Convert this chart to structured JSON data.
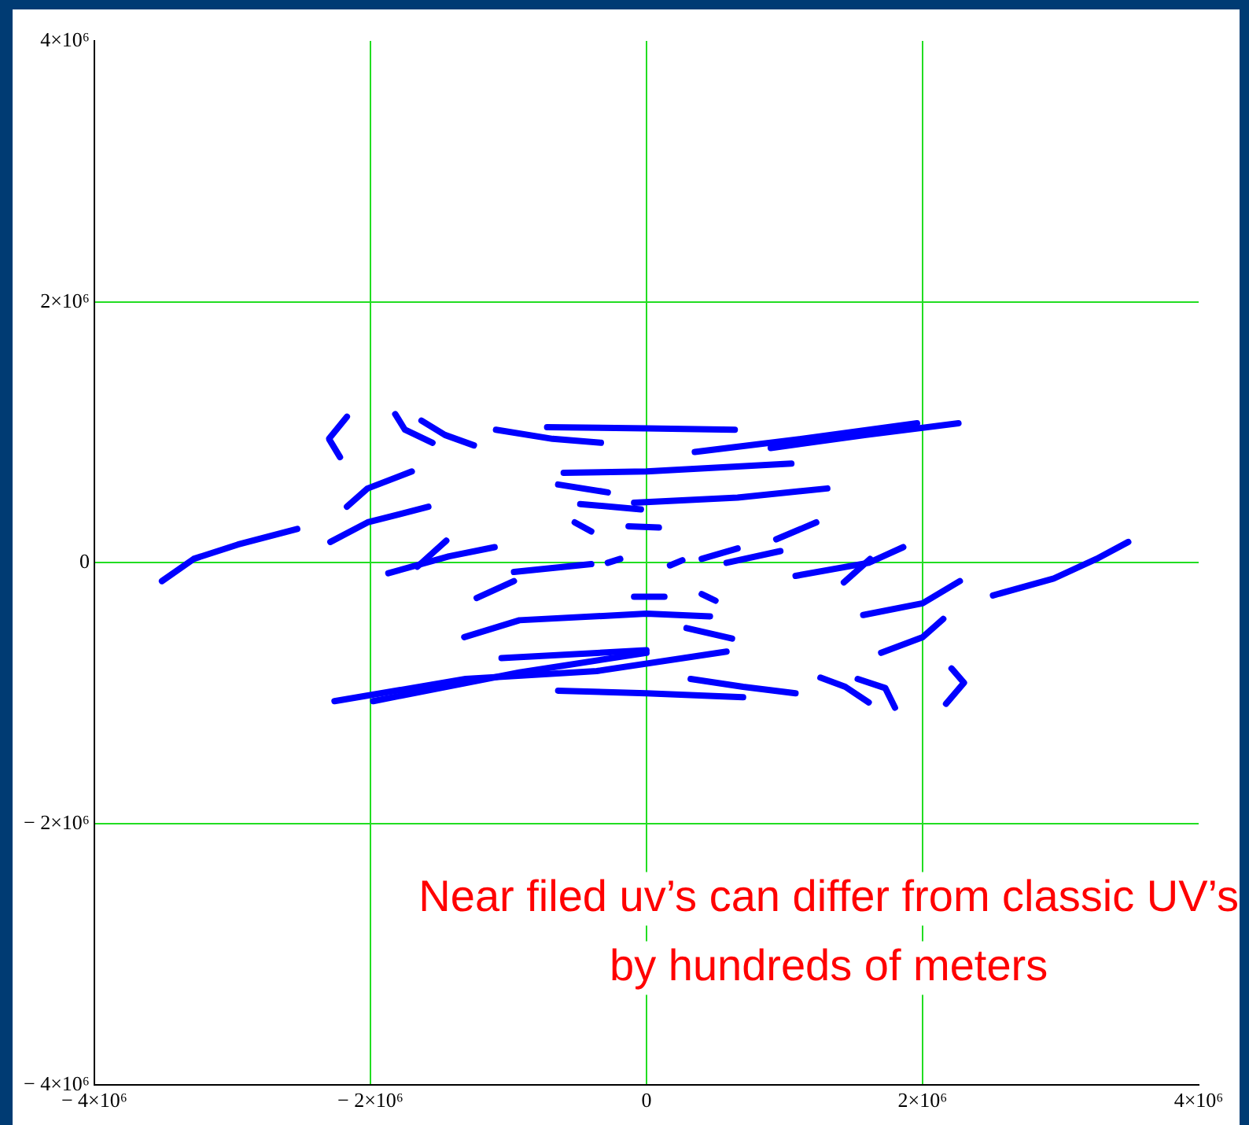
{
  "chart_data": {
    "type": "line",
    "xlim": [
      -4000000,
      4000000
    ],
    "ylim": [
      -4000000,
      4000000
    ],
    "xticks": [
      {
        "value": -4000000,
        "label": "− 4×10⁶"
      },
      {
        "value": -2000000,
        "label": "− 2×10⁶"
      },
      0,
      {
        "value": 2000000,
        "label": "2×10⁶"
      },
      {
        "value": 4000000,
        "label": "4×10⁶"
      }
    ],
    "yticks": [
      {
        "value": -4000000,
        "label": "− 4×10⁶"
      },
      {
        "value": -2000000,
        "label": "− 2×10⁶"
      },
      0,
      {
        "value": 2000000,
        "label": "2×10⁶"
      },
      {
        "value": 4000000,
        "label": "4×10⁶"
      }
    ],
    "grid": true,
    "legend": false,
    "marker": "none",
    "annotations": [
      "Near filed uv’s can differ from classic UV’s by hundreds of meters"
    ],
    "series": [
      {
        "color": "#0000ff",
        "x": [
          -3510000,
          -3280000,
          -2960000,
          -2530000
        ],
        "values": [
          -140000,
          30000,
          140000,
          260000
        ]
      },
      {
        "color": "#0000ff",
        "x": [
          2510000,
          2950000,
          3260000,
          3490000
        ],
        "values": [
          -250000,
          -120000,
          30000,
          160000
        ]
      },
      {
        "color": "#0000ff",
        "x": [
          -2290000,
          -2020000,
          -1580000
        ],
        "values": [
          160000,
          310000,
          430000
        ]
      },
      {
        "color": "#0000ff",
        "x": [
          -2170000,
          -2020000,
          -1700000
        ],
        "values": [
          430000,
          570000,
          700000
        ]
      },
      {
        "color": "#0000ff",
        "x": [
          -2170000,
          -2300000,
          -2220000
        ],
        "values": [
          1120000,
          950000,
          810000
        ]
      },
      {
        "color": "#0000ff",
        "x": [
          -1820000,
          -1750000,
          -1550000
        ],
        "values": [
          1140000,
          1020000,
          920000
        ]
      },
      {
        "color": "#0000ff",
        "x": [
          -1630000,
          -1460000,
          -1250000
        ],
        "values": [
          1090000,
          980000,
          900000
        ]
      },
      {
        "color": "#0000ff",
        "x": [
          -1090000,
          -680000,
          -330000
        ],
        "values": [
          1020000,
          950000,
          920000
        ]
      },
      {
        "color": "#0000ff",
        "x": [
          -720000,
          0,
          640000
        ],
        "values": [
          1040000,
          1030000,
          1020000
        ]
      },
      {
        "color": "#0000ff",
        "x": [
          350000,
          1050000,
          1960000
        ],
        "values": [
          850000,
          940000,
          1070000
        ]
      },
      {
        "color": "#0000ff",
        "x": [
          900000,
          1590000,
          2260000
        ],
        "values": [
          880000,
          980000,
          1070000
        ]
      },
      {
        "color": "#0000ff",
        "x": [
          -600000,
          0,
          1050000
        ],
        "values": [
          690000,
          700000,
          760000
        ]
      },
      {
        "color": "#0000ff",
        "x": [
          -640000,
          -280000
        ],
        "values": [
          600000,
          540000
        ]
      },
      {
        "color": "#0000ff",
        "x": [
          -90000,
          660000,
          1310000
        ],
        "values": [
          460000,
          500000,
          570000
        ]
      },
      {
        "color": "#0000ff",
        "x": [
          -480000,
          -40000
        ],
        "values": [
          450000,
          410000
        ]
      },
      {
        "color": "#0000ff",
        "x": [
          -130000,
          90000
        ],
        "values": [
          280000,
          270000
        ]
      },
      {
        "color": "#0000ff",
        "x": [
          940000,
          1230000
        ],
        "values": [
          180000,
          310000
        ]
      },
      {
        "color": "#0000ff",
        "x": [
          400000,
          660000
        ],
        "values": [
          30000,
          110000
        ]
      },
      {
        "color": "#0000ff",
        "x": [
          580000,
          970000
        ],
        "values": [
          0,
          90000
        ]
      },
      {
        "color": "#0000ff",
        "x": [
          1080000,
          1610000,
          1860000
        ],
        "values": [
          -100000,
          0,
          120000
        ]
      },
      {
        "color": "#0000ff",
        "x": [
          1430000,
          1620000
        ],
        "values": [
          -150000,
          30000
        ]
      },
      {
        "color": "#0000ff",
        "x": [
          1570000,
          2000000,
          2270000
        ],
        "values": [
          -400000,
          -310000,
          -140000
        ]
      },
      {
        "color": "#0000ff",
        "x": [
          1700000,
          2000000,
          2150000
        ],
        "values": [
          -690000,
          -570000,
          -430000
        ]
      },
      {
        "color": "#0000ff",
        "x": [
          1260000,
          1440000,
          1610000
        ],
        "values": [
          -880000,
          -950000,
          -1070000
        ]
      },
      {
        "color": "#0000ff",
        "x": [
          1530000,
          1730000,
          1800000
        ],
        "values": [
          -890000,
          -960000,
          -1110000
        ]
      },
      {
        "color": "#0000ff",
        "x": [
          2210000,
          2300000,
          2170000
        ],
        "values": [
          -810000,
          -920000,
          -1080000
        ]
      },
      {
        "color": "#0000ff",
        "x": [
          320000,
          700000,
          1080000
        ],
        "values": [
          -890000,
          -950000,
          -1000000
        ]
      },
      {
        "color": "#0000ff",
        "x": [
          -640000,
          0,
          700000
        ],
        "values": [
          -980000,
          -1000000,
          -1030000
        ]
      },
      {
        "color": "#0000ff",
        "x": [
          -2260000,
          -1310000,
          -360000,
          580000
        ],
        "values": [
          -1060000,
          -890000,
          -830000,
          -680000
        ]
      },
      {
        "color": "#0000ff",
        "x": [
          -1980000,
          -920000,
          0
        ],
        "values": [
          -1060000,
          -840000,
          -690000
        ]
      },
      {
        "color": "#0000ff",
        "x": [
          -1050000,
          0
        ],
        "values": [
          -730000,
          -670000
        ]
      },
      {
        "color": "#0000ff",
        "x": [
          -1320000,
          -920000,
          0,
          460000
        ],
        "values": [
          -570000,
          -440000,
          -390000,
          -410000
        ]
      },
      {
        "color": "#0000ff",
        "x": [
          290000,
          620000
        ],
        "values": [
          -500000,
          -580000
        ]
      },
      {
        "color": "#0000ff",
        "x": [
          -1230000,
          -960000
        ],
        "values": [
          -270000,
          -140000
        ]
      },
      {
        "color": "#0000ff",
        "x": [
          -960000,
          -400000
        ],
        "values": [
          -70000,
          -10000
        ]
      },
      {
        "color": "#0000ff",
        "x": [
          -1870000,
          -1430000,
          -1100000
        ],
        "values": [
          -80000,
          50000,
          120000
        ]
      },
      {
        "color": "#0000ff",
        "x": [
          -1660000,
          -1450000
        ],
        "values": [
          -30000,
          170000
        ]
      },
      {
        "color": "#0000ff",
        "x": [
          -90000,
          130000
        ],
        "values": [
          -260000,
          -260000
        ]
      },
      {
        "color": "#0000ff",
        "x": [
          400000,
          500000
        ],
        "values": [
          -240000,
          -290000
        ]
      },
      {
        "color": "#0000ff",
        "x": [
          170000,
          260000
        ],
        "values": [
          -20000,
          20000
        ]
      },
      {
        "color": "#0000ff",
        "x": [
          -520000,
          -400000
        ],
        "values": [
          310000,
          240000
        ]
      },
      {
        "color": "#0000ff",
        "x": [
          -280000,
          -190000
        ],
        "values": [
          0,
          30000
        ]
      }
    ]
  }
}
